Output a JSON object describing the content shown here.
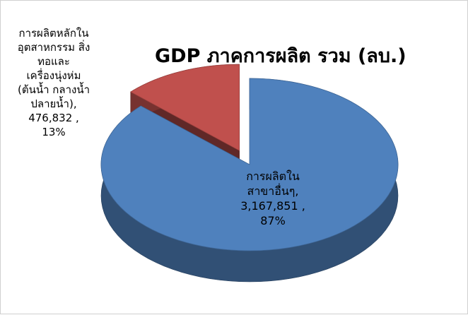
{
  "chart_data": {
    "type": "pie",
    "title": "GDP ภาคการผลิต รวม (ลบ.)",
    "slices": [
      {
        "label_lines": [
          "การผลิตใน",
          "สาขาอื่นๆ,"
        ],
        "value": 3167851,
        "value_text": "3,167,851 ,",
        "percent": 87,
        "percent_text": "87%",
        "color": "#4f81bd"
      },
      {
        "label_lines": [
          "การผลิตหลักใน",
          "อุตสาหกรรม สิ่ง",
          "ทอและ",
          "เครื่องนุ่งห่ม",
          "(ต้นน้ำ กลางน้ำ",
          "ปลายน้ำ),"
        ],
        "value": 476832,
        "value_text": "476,832 ,",
        "percent": 13,
        "percent_text": "13%",
        "color": "#c0504d",
        "exploded": true
      }
    ],
    "legend": "none"
  }
}
